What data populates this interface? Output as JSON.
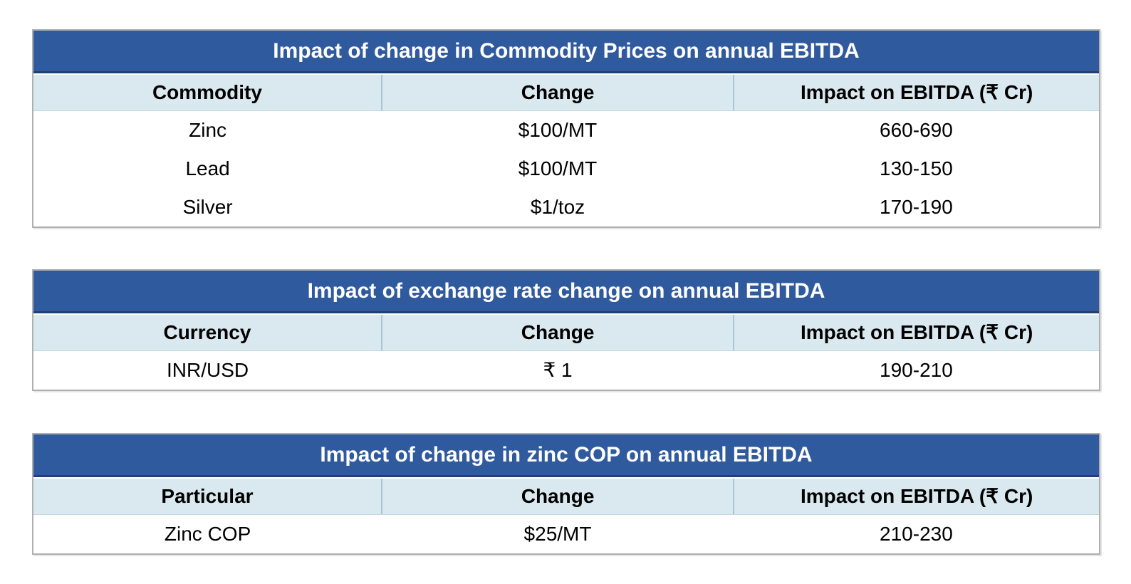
{
  "colors": {
    "title_bg": "#2F5A9E",
    "title_text": "#FFFFFF",
    "title_border": "#233F6D",
    "header_bg": "#DAE9F0",
    "header_divider": "#A8C4D6",
    "table_border": "#B0B0B0",
    "body_text": "#000000"
  },
  "tables": [
    {
      "title": "Impact of change in Commodity Prices on annual EBITDA",
      "columns": [
        "Commodity",
        "Change",
        "Impact on EBITDA (₹ Cr)"
      ],
      "rows": [
        [
          "Zinc",
          "$100/MT",
          "660-690"
        ],
        [
          "Lead",
          "$100/MT",
          "130-150"
        ],
        [
          "Silver",
          "$1/toz",
          "170-190"
        ]
      ]
    },
    {
      "title": "Impact of exchange rate change on annual EBITDA",
      "columns": [
        "Currency",
        "Change",
        "Impact on EBITDA (₹ Cr)"
      ],
      "rows": [
        [
          "INR/USD",
          "₹ 1",
          "190-210"
        ]
      ]
    },
    {
      "title": "Impact of change in zinc COP on annual EBITDA",
      "columns": [
        "Particular",
        "Change",
        "Impact on EBITDA (₹ Cr)"
      ],
      "rows": [
        [
          "Zinc COP",
          "$25/MT",
          "210-230"
        ]
      ]
    }
  ]
}
